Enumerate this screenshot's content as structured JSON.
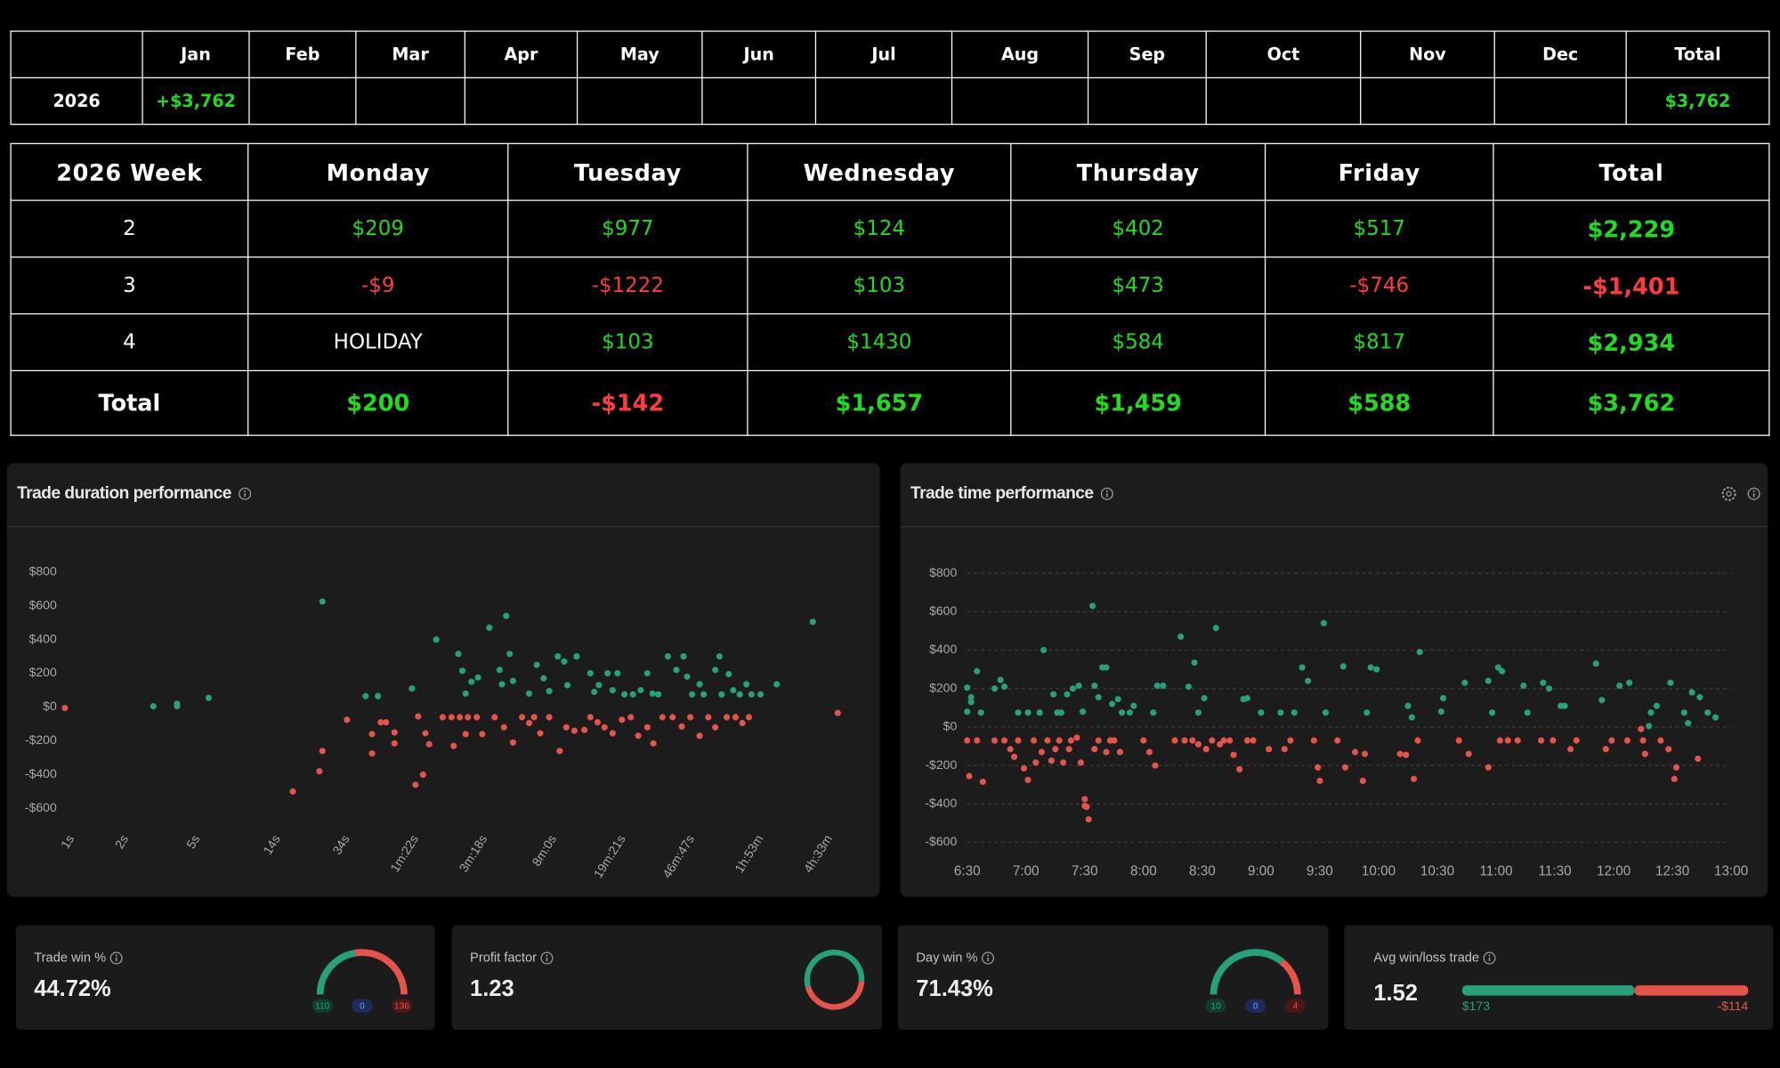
{
  "colors": {
    "gain": "#1fdc1f",
    "loss": "#ff3b3b"
  },
  "monthly_table": {
    "columns": [
      "Jan",
      "Feb",
      "Mar",
      "Apr",
      "May",
      "Jun",
      "Jul",
      "Aug",
      "Sep",
      "Oct",
      "Nov",
      "Dec",
      "Total"
    ],
    "rows": [
      {
        "label": "2026",
        "cells": [
          "+$3,762",
          null,
          null,
          null,
          null,
          null,
          null,
          null,
          null,
          null,
          null,
          null,
          "$3,762"
        ]
      }
    ]
  },
  "weekly_table": {
    "header": [
      "2026 Week",
      "Monday",
      "Tuesday",
      "Wednesday",
      "Thursday",
      "Friday",
      "Total"
    ],
    "rows": [
      [
        "2",
        "$209",
        "$977",
        "$124",
        "$402",
        "$517",
        "$2,229"
      ],
      [
        "3",
        "-$9",
        "-$1222",
        "$103",
        "$473",
        "-$746",
        "-$1,401"
      ],
      [
        "4",
        "HOLIDAY",
        "$103",
        "$1430",
        "$584",
        "$817",
        "$2,934"
      ]
    ],
    "total_row": [
      "Total",
      "$200",
      "-$142",
      "$1,657",
      "$1,459",
      "$588",
      "$3,762"
    ]
  },
  "chart_data": [
    {
      "type": "scatter",
      "title": "Trade duration performance",
      "x_scale": "log",
      "grid": false,
      "positive_color": "#26a17b",
      "negative_color": "#e5534b",
      "xlim": [
        0.85,
        25000
      ],
      "xticks": [
        {
          "value": 1,
          "label": "1s"
        },
        {
          "value": 2,
          "label": "2s"
        },
        {
          "value": 5,
          "label": "5s"
        },
        {
          "value": 14,
          "label": "14s"
        },
        {
          "value": 34,
          "label": "34s"
        },
        {
          "value": 82,
          "label": "1m:22s"
        },
        {
          "value": 198,
          "label": "3m:18s"
        },
        {
          "value": 480,
          "label": "8m:0s"
        },
        {
          "value": 1161,
          "label": "19m:21s"
        },
        {
          "value": 2807,
          "label": "46m:47s"
        },
        {
          "value": 6780,
          "label": "1h:53m"
        },
        {
          "value": 16380,
          "label": "4h:33m"
        }
      ],
      "ylim": [
        -700,
        900
      ],
      "yticks": [
        {
          "value": 800,
          "label": "$800"
        },
        {
          "value": 600,
          "label": "$600"
        },
        {
          "value": 400,
          "label": "$400"
        },
        {
          "value": 200,
          "label": "$200"
        },
        {
          "value": 0,
          "label": "$0"
        },
        {
          "value": -200,
          "label": "-$200"
        },
        {
          "value": -400,
          "label": "-$400"
        },
        {
          "value": -600,
          "label": "-$600"
        }
      ],
      "x": [
        1,
        3.1,
        4.2,
        4.2,
        6.3,
        18.5,
        26,
        27,
        27,
        37,
        47,
        55,
        51,
        51,
        57,
        61,
        68,
        68,
        85,
        89,
        98,
        92,
        101,
        106,
        116,
        126,
        141,
        157,
        174,
        195,
        154,
        162,
        169,
        182,
        198,
        145,
        169,
        209,
        229,
        261,
        284,
        269,
        297,
        310,
        245,
        276,
        310,
        348,
        381,
        406,
        439,
        493,
        381,
        420,
        459,
        493,
        550,
        597,
        622,
        700,
        563,
        613,
        680,
        773,
        834,
        915,
        1000,
        1110,
        834,
        877,
        930,
        1040,
        1110,
        1180,
        1290,
        1440,
        1590,
        1730,
        1850,
        1990,
        1250,
        1400,
        1540,
        1730,
        1870,
        2100,
        2250,
        2510,
        2750,
        2880,
        3070,
        3380,
        3560,
        2390,
        2690,
        3000,
        3380,
        3780,
        4130,
        4130,
        4360,
        4480,
        4900,
        5200,
        5650,
        6150,
        6560,
        7370,
        4780,
        5350,
        5850,
        6350,
        9070,
        14400,
        19800
      ],
      "values": [
        -5,
        5,
        20,
        5,
        55,
        -500,
        -380,
        -260,
        625,
        -75,
        65,
        65,
        -275,
        -160,
        -90,
        -90,
        -215,
        -150,
        110,
        -460,
        -400,
        -55,
        -155,
        -220,
        400,
        -60,
        -60,
        -60,
        -60,
        -60,
        315,
        215,
        80,
        150,
        175,
        -230,
        -160,
        -160,
        470,
        220,
        540,
        135,
        315,
        155,
        -60,
        -120,
        -210,
        -60,
        -95,
        -60,
        -155,
        -60,
        80,
        250,
        170,
        95,
        300,
        270,
        130,
        300,
        -260,
        -120,
        -140,
        -135,
        -60,
        -90,
        -120,
        -155,
        200,
        90,
        130,
        200,
        100,
        200,
        75,
        75,
        100,
        200,
        80,
        75,
        -75,
        -60,
        -170,
        -120,
        -215,
        -60,
        300,
        220,
        300,
        180,
        75,
        135,
        75,
        -60,
        -115,
        -60,
        -170,
        -60,
        -120,
        220,
        300,
        75,
        195,
        100,
        75,
        135,
        75,
        75,
        -60,
        -60,
        -95,
        -60,
        135,
        505,
        -35
      ]
    },
    {
      "type": "scatter",
      "title": "Trade time performance",
      "x_scale": "time",
      "grid": true,
      "positive_color": "#26a17b",
      "negative_color": "#e5534b",
      "xlim": [
        "6:30",
        "13:00"
      ],
      "xticks": [
        "6:30",
        "7:00",
        "7:30",
        "8:00",
        "8:30",
        "9:00",
        "9:30",
        "10:00",
        "10:30",
        "11:00",
        "11:30",
        "12:00",
        "12:30",
        "13:00"
      ],
      "ylim": [
        -700,
        900
      ],
      "yticks": [
        {
          "value": 800,
          "label": "$800"
        },
        {
          "value": 600,
          "label": "$600"
        },
        {
          "value": 400,
          "label": "$400"
        },
        {
          "value": 200,
          "label": "$200"
        },
        {
          "value": 0,
          "label": "$0"
        },
        {
          "value": -200,
          "label": "-$200"
        },
        {
          "value": -400,
          "label": "-$400"
        },
        {
          "value": -600,
          "label": "-$600"
        }
      ],
      "x": [
        "6:30",
        "6:32",
        "6:30",
        "6:32",
        "6:35",
        "6:37",
        "6:30",
        "6:31",
        "6:38",
        "6:35",
        "6:44",
        "6:47",
        "6:49",
        "6:44",
        "6:49",
        "6:52",
        "6:54",
        "6:56",
        "6:56",
        "7:01",
        "6:59",
        "7:01",
        "7:04",
        "7:05",
        "7:08",
        "7:09",
        "7:07",
        "7:11",
        "7:13",
        "7:15",
        "7:17",
        "7:19",
        "7:22",
        "7:23",
        "7:14",
        "7:16",
        "7:18",
        "7:21",
        "7:24",
        "7:27",
        "7:29",
        "7:26",
        "7:28",
        "7:30",
        "7:31",
        "7:32",
        "7:30",
        "7:34",
        "7:35",
        "7:37",
        "7:39",
        "7:41",
        "7:35",
        "7:37",
        "7:41",
        "7:43",
        "7:45",
        "7:48",
        "7:44",
        "7:47",
        "7:49",
        "7:53",
        "7:55",
        "8:00",
        "8:03",
        "8:06",
        "8:05",
        "8:07",
        "8:10",
        "8:16",
        "8:19",
        "8:21",
        "8:23",
        "8:25",
        "8:28",
        "8:26",
        "8:28",
        "8:31",
        "8:32",
        "8:35",
        "8:37",
        "8:39",
        "8:41",
        "8:44",
        "8:46",
        "8:49",
        "8:51",
        "8:53",
        "8:53",
        "8:56",
        "9:00",
        "9:04",
        "9:10",
        "9:12",
        "9:15",
        "9:17",
        "9:21",
        "9:24",
        "9:27",
        "9:29",
        "9:30",
        "9:32",
        "9:33",
        "9:39",
        "9:42",
        "9:43",
        "9:48",
        "9:52",
        "9:53",
        "9:54",
        "9:56",
        "9:59",
        "10:11",
        "10:14",
        "10:15",
        "10:17",
        "10:18",
        "10:21",
        "10:20",
        "10:32",
        "10:33",
        "10:41",
        "10:44",
        "10:46",
        "10:56",
        "10:56",
        "10:58",
        "11:01",
        "11:03",
        "11:02",
        "11:06",
        "11:11",
        "11:14",
        "11:16",
        "11:24",
        "11:27",
        "11:23",
        "11:29",
        "11:33",
        "11:35",
        "11:38",
        "11:41",
        "11:51",
        "11:54",
        "11:56",
        "11:59",
        "12:03",
        "12:08",
        "12:07",
        "12:14",
        "12:15",
        "12:16",
        "12:18",
        "12:19",
        "12:22",
        "12:24",
        "12:28",
        "12:29",
        "12:31",
        "12:32",
        "12:36",
        "12:38",
        "12:40",
        "12:43",
        "12:44",
        "12:48",
        "12:52"
      ],
      "values": [
        205,
        155,
        80,
        130,
        290,
        75,
        -70,
        -255,
        -285,
        -70,
        200,
        245,
        210,
        -70,
        -70,
        -115,
        -155,
        -70,
        75,
        75,
        -215,
        -275,
        -70,
        -185,
        -130,
        400,
        75,
        -70,
        -175,
        -115,
        -70,
        -185,
        -115,
        -70,
        170,
        75,
        75,
        170,
        200,
        215,
        80,
        -55,
        -185,
        -375,
        -415,
        -480,
        -410,
        630,
        215,
        155,
        310,
        310,
        -115,
        -70,
        -130,
        -70,
        -70,
        -130,
        120,
        145,
        75,
        75,
        110,
        -70,
        -130,
        -200,
        75,
        215,
        215,
        -70,
        470,
        -70,
        210,
        -70,
        -90,
        335,
        75,
        150,
        -115,
        -70,
        515,
        -90,
        -70,
        -70,
        -145,
        -220,
        145,
        150,
        -70,
        -70,
        75,
        -115,
        75,
        -115,
        -70,
        75,
        310,
        240,
        -70,
        -210,
        -280,
        540,
        75,
        -70,
        315,
        -210,
        -130,
        -280,
        -140,
        75,
        310,
        300,
        -140,
        -145,
        110,
        50,
        -270,
        390,
        -70,
        80,
        150,
        -70,
        230,
        -140,
        240,
        -210,
        75,
        310,
        290,
        -70,
        -70,
        -70,
        215,
        75,
        230,
        200,
        -70,
        -70,
        110,
        110,
        -115,
        -70,
        330,
        140,
        -115,
        -70,
        215,
        230,
        -70,
        -10,
        -70,
        -140,
        5,
        75,
        110,
        -70,
        -115,
        230,
        -270,
        -210,
        75,
        20,
        180,
        -165,
        155,
        75,
        50
      ]
    }
  ],
  "stats": [
    {
      "type": "gauge",
      "title": "Trade win %",
      "value": "44.72%",
      "wins": 110,
      "breakeven": 0,
      "losses": 136
    },
    {
      "type": "donut",
      "title": "Profit factor",
      "value": 1.23
    },
    {
      "type": "gauge",
      "title": "Day win %",
      "value": "71.43%",
      "wins": 10,
      "breakeven": 0,
      "losses": 4
    },
    {
      "type": "bar",
      "title": "Avg win/loss trade",
      "value": 1.52,
      "win": {
        "value": 173,
        "label": "$173"
      },
      "loss": {
        "value": -114,
        "label": "-$114"
      }
    }
  ]
}
